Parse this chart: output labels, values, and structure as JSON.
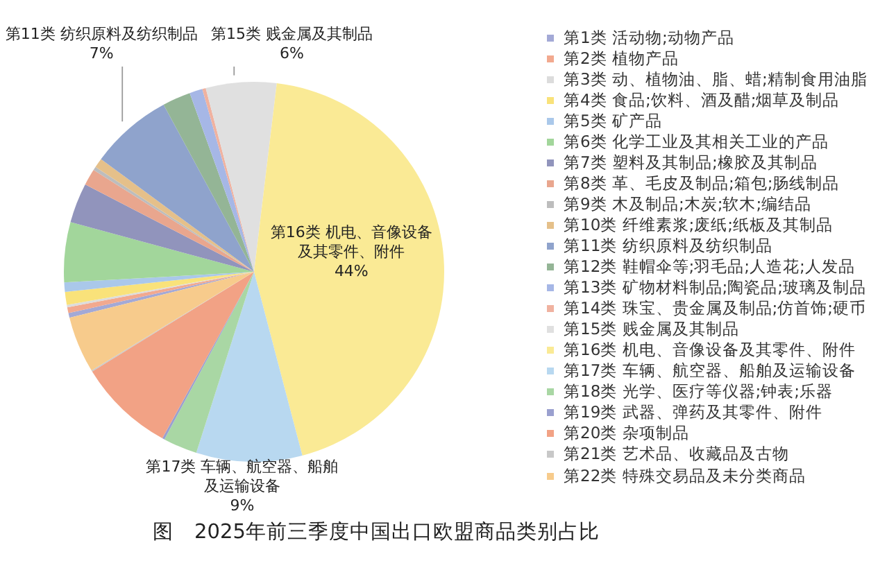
{
  "chart_data": {
    "type": "pie",
    "title": "图　2025年前三季度中国出口欧盟商品类别占比",
    "categories": [
      "第1类 活动物;动物产品",
      "第2类 植物产品",
      "第3类 动、植物油、脂、蜡;精制食用油脂",
      "第4类 食品;饮料、酒及醋;烟草及制品",
      "第5类 矿产品",
      "第6类 化学工业及其相关工业的产品",
      "第7类 塑料及其制品;橡胶及其制品",
      "第8类 革、毛皮及制品;箱包;肠线制品",
      "第9类 木及制品;木炭;软木;编结品",
      "第10类 纤维素浆;废纸;纸板及其制品",
      "第11类 纺织原料及纺织制品",
      "第12类 鞋帽伞等;羽毛品;人造花;人发品",
      "第13类 矿物材料制品;陶瓷品;玻璃及制品",
      "第14类 珠宝、贵金属及制品;仿首饰;硬币",
      "第15类 贱金属及其制品",
      "第16类 机电、音像设备及其零件、附件",
      "第17类 车辆、航空器、船舶及运输设备",
      "第18类 光学、医疗等仪器;钟表;乐器",
      "第19类 武器、弹药及其零件、附件",
      "第20类 杂项制品",
      "第21类 艺术品、收藏品及古物",
      "第22类 特殊交易品及未分类商品"
    ],
    "values": [
      0.4,
      0.5,
      0.2,
      1.1,
      0.8,
      5.1,
      3.4,
      1.4,
      0.3,
      0.8,
      7,
      2.4,
      1.1,
      0.3,
      6,
      44,
      9,
      2.9,
      0.2,
      8.2,
      0.1,
      4.8
    ],
    "colors": [
      "#a3a9d6",
      "#f2a98f",
      "#dcdcdc",
      "#f9e27a",
      "#aac8ea",
      "#a2d69b",
      "#9194bc",
      "#e9a68e",
      "#bdbdbd",
      "#e5c08a",
      "#8fa3cc",
      "#94b596",
      "#a6b7e6",
      "#f0b2a0",
      "#e0e0e0",
      "#faea95",
      "#b8d8f0",
      "#a9d7a4",
      "#9aa0cf",
      "#f2a285",
      "#c8c8c8",
      "#f7cb8c"
    ],
    "value_labels": [
      null,
      null,
      null,
      null,
      null,
      null,
      null,
      null,
      null,
      null,
      "7%",
      null,
      null,
      null,
      "6%",
      "44%",
      "9%",
      null,
      null,
      null,
      null,
      null
    ],
    "legend": "right"
  }
}
